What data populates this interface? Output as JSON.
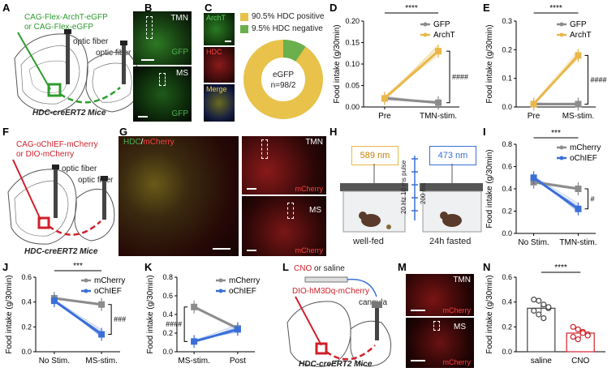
{
  "panel_letters": {
    "A": "A",
    "B": "B",
    "C": "C",
    "D": "D",
    "E": "E",
    "F": "F",
    "G": "G",
    "H": "H",
    "I": "I",
    "J": "J",
    "K": "K",
    "L": "L",
    "M": "M",
    "N": "N"
  },
  "panel_a": {
    "virus_line1": "CAG-Flex-ArchT-eGFP",
    "virus_line2": "or CAG-Flex-eGFP",
    "fiber1": "optic fiber",
    "fiber2": "optic fiber",
    "mouse": "HDC-creERT2 Mice"
  },
  "panel_b": {
    "top_label": "TMN",
    "bottom_label": "MS",
    "gfp_label": "GFP"
  },
  "panel_c": {
    "ch1": "ArchT",
    "ch2": "HDC",
    "ch3": "Merge",
    "legend_pos": "90.5% HDC positive",
    "legend_neg": "9.5% HDC negative",
    "center_line1": "eGFP",
    "center_line2": "n=98/2",
    "colors": {
      "positive": "#e8c24a",
      "negative": "#6ab04c"
    }
  },
  "panel_f": {
    "virus_line1": "CAG-oChIEF-mCherry",
    "virus_line2": "or DIO-mCherry",
    "fiber1": "optic fiber",
    "fiber2": "optic fiber",
    "mouse": "HDC-creERT2 Mice"
  },
  "panel_g": {
    "label_hdc": "HDC",
    "label_slash": "/",
    "label_mcherry": "mCherry",
    "tmn": "TMN",
    "ms": "MS",
    "mcherry_small": "mCherry"
  },
  "panel_h": {
    "left_laser": "589 nm",
    "right_laser": "473 nm",
    "pulse": "20 Hz 10 ms pulse",
    "duration": "200 ms",
    "left_state": "well-fed",
    "right_state": "24h fasted"
  },
  "panel_l": {
    "cno": "CNO",
    "or_saline": "or saline",
    "virus": "DIO-hM3Dq-mCherry",
    "cannula": "cannula",
    "mouse": "HDC-creERT2 Mice"
  },
  "panel_m": {
    "tmn": "TMN",
    "ms": "MS",
    "mcherry": "mCherry"
  },
  "colors": {
    "gold": "#e8b84a",
    "gray": "#8c8c8c",
    "blue": "#3b6fd8",
    "red": "#d0202a",
    "green": "#3c9c3c"
  },
  "chart_data": [
    {
      "panel": "D",
      "type": "line",
      "ylabel": "Food intake (g/30min)",
      "x": [
        "Pre",
        "TMN-stim."
      ],
      "ylim": [
        0,
        0.2
      ],
      "yticks": [
        "0.00",
        "0.05",
        "0.10",
        "0.15",
        "0.20"
      ],
      "series": [
        {
          "name": "GFP",
          "values": [
            0.02,
            0.01
          ]
        },
        {
          "name": "ArchT",
          "values": [
            0.02,
            0.13
          ]
        }
      ],
      "annotations": [
        "****",
        "####"
      ]
    },
    {
      "panel": "E",
      "type": "line",
      "ylabel": "Food intake (g/30min)",
      "x": [
        "Pre",
        "MS-stim."
      ],
      "ylim": [
        0,
        0.3
      ],
      "yticks": [
        "0.0",
        "0.1",
        "0.2",
        "0.3"
      ],
      "series": [
        {
          "name": "GFP",
          "values": [
            0.01,
            0.01
          ]
        },
        {
          "name": "ArchT",
          "values": [
            0.01,
            0.18
          ]
        }
      ],
      "annotations": [
        "****",
        "####"
      ]
    },
    {
      "panel": "I",
      "type": "line",
      "ylabel": "Food intake (g/30min)",
      "x": [
        "No Stim.",
        "TMN-stim."
      ],
      "ylim": [
        0,
        0.8
      ],
      "yticks": [
        "0.0",
        "0.2",
        "0.4",
        "0.6",
        "0.8"
      ],
      "series": [
        {
          "name": "mCherry",
          "values": [
            0.46,
            0.4
          ]
        },
        {
          "name": "oChIEF",
          "values": [
            0.5,
            0.22
          ]
        }
      ],
      "annotations": [
        "***",
        "#"
      ]
    },
    {
      "panel": "J",
      "type": "line",
      "ylabel": "Food intake (g/30min)",
      "x": [
        "No Stim.",
        "MS-stim."
      ],
      "ylim": [
        0,
        0.6
      ],
      "yticks": [
        "0.0",
        "0.2",
        "0.4",
        "0.6"
      ],
      "series": [
        {
          "name": "mCherry",
          "values": [
            0.43,
            0.38
          ]
        },
        {
          "name": "oChIEF",
          "values": [
            0.41,
            0.14
          ]
        }
      ],
      "annotations": [
        "***",
        "###"
      ]
    },
    {
      "panel": "K",
      "type": "line",
      "ylabel": "Food intake (g/30min)",
      "x": [
        "MS-stim.",
        "Post"
      ],
      "ylim": [
        0,
        0.8
      ],
      "yticks": [
        "0.0",
        "0.2",
        "0.4",
        "0.6",
        "0.8"
      ],
      "series": [
        {
          "name": "mCherry",
          "values": [
            0.48,
            0.25
          ]
        },
        {
          "name": "oChIEF",
          "values": [
            0.11,
            0.24
          ]
        }
      ],
      "annotations": [
        "####"
      ]
    },
    {
      "panel": "N",
      "type": "bar",
      "ylabel": "Food intake (g/30min)",
      "categories": [
        "saline",
        "CNO"
      ],
      "ylim": [
        0,
        0.6
      ],
      "yticks": [
        "0.0",
        "0.2",
        "0.4",
        "0.6"
      ],
      "values": [
        0.35,
        0.15
      ],
      "points": [
        [
          0.42,
          0.41,
          0.38,
          0.35,
          0.33,
          0.3,
          0.27,
          0.36
        ],
        [
          0.2,
          0.18,
          0.16,
          0.14,
          0.12,
          0.1,
          0.15,
          0.13
        ]
      ],
      "annotations": [
        "****"
      ]
    }
  ]
}
